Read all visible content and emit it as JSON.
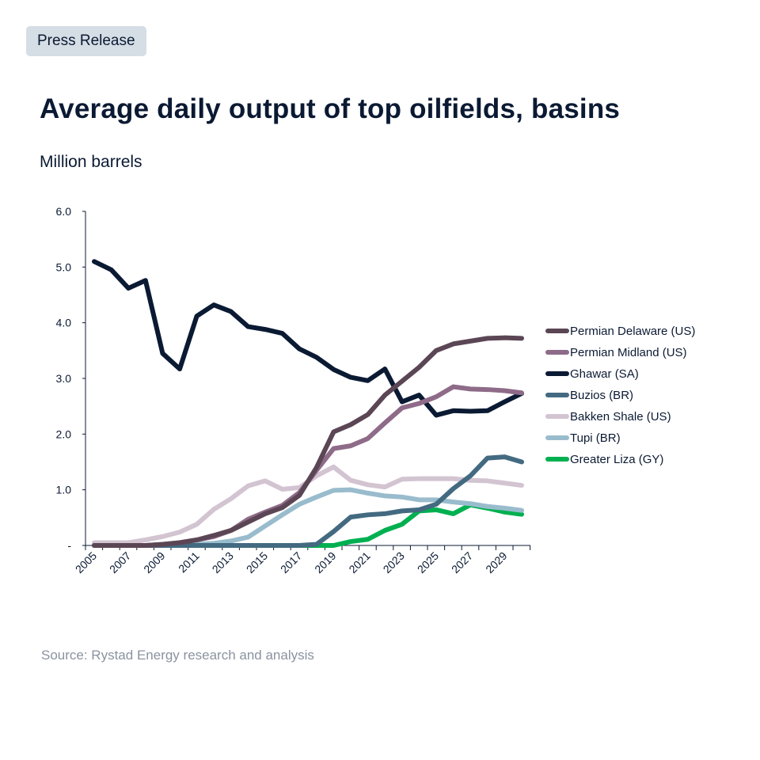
{
  "badge": "Press Release",
  "title": "Average daily output of top oilfields, basins",
  "subtitle": "Million barrels",
  "source": "Source: Rystad Energy research and analysis",
  "chart_data": {
    "type": "line",
    "title": "Average daily output of top oilfields, basins",
    "ylabel": "Million barrels",
    "ylim": [
      0,
      6
    ],
    "yticks": [
      "-",
      "1.0",
      "2.0",
      "3.0",
      "4.0",
      "5.0",
      "6.0"
    ],
    "xticks": [
      "2005",
      "2007",
      "2009",
      "2011",
      "2013",
      "2015",
      "2017",
      "2019",
      "2021",
      "2023",
      "2025",
      "2027",
      "2029"
    ],
    "x": [
      2005,
      2006,
      2007,
      2008,
      2009,
      2010,
      2011,
      2012,
      2013,
      2014,
      2015,
      2016,
      2017,
      2018,
      2019,
      2020,
      2021,
      2022,
      2023,
      2024,
      2025,
      2026,
      2027,
      2028,
      2029,
      2030
    ],
    "legend_position": "right",
    "grid": false,
    "series": [
      {
        "name": "Permian Delaware (US)",
        "color": "#5b4655",
        "values": [
          0,
          0,
          0,
          0,
          0.02,
          0.05,
          0.1,
          0.18,
          0.27,
          0.42,
          0.57,
          0.68,
          0.9,
          1.4,
          2.04,
          2.17,
          2.35,
          2.7,
          2.95,
          3.2,
          3.5,
          3.62,
          3.67,
          3.72,
          3.73,
          3.72
        ]
      },
      {
        "name": "Permian Midland (US)",
        "color": "#8e6b88",
        "values": [
          0,
          0,
          0,
          0,
          0.02,
          0.05,
          0.1,
          0.16,
          0.27,
          0.47,
          0.6,
          0.72,
          0.95,
          1.35,
          1.74,
          1.79,
          1.92,
          2.2,
          2.47,
          2.55,
          2.67,
          2.85,
          2.81,
          2.8,
          2.78,
          2.74
        ]
      },
      {
        "name": "Ghawar (SA)",
        "color": "#0b1a33",
        "values": [
          5.1,
          4.95,
          4.62,
          4.76,
          3.45,
          3.17,
          4.12,
          4.32,
          4.2,
          3.93,
          3.88,
          3.81,
          3.53,
          3.38,
          3.16,
          3.02,
          2.96,
          3.17,
          2.58,
          2.7,
          2.34,
          2.42,
          2.41,
          2.42,
          2.58,
          2.73
        ]
      },
      {
        "name": "Buzios (BR)",
        "color": "#436a80",
        "values": [
          0,
          0,
          0,
          0,
          0,
          0,
          0,
          0,
          0,
          0,
          0,
          0,
          0,
          0.02,
          0.25,
          0.51,
          0.55,
          0.57,
          0.62,
          0.64,
          0.74,
          1.02,
          1.25,
          1.57,
          1.59,
          1.5
        ]
      },
      {
        "name": "Bakken Shale (US)",
        "color": "#d3c4d1",
        "values": [
          0.05,
          0.05,
          0.05,
          0.1,
          0.16,
          0.24,
          0.38,
          0.65,
          0.84,
          1.07,
          1.16,
          1.01,
          1.04,
          1.25,
          1.41,
          1.17,
          1.09,
          1.05,
          1.19,
          1.2,
          1.2,
          1.2,
          1.17,
          1.16,
          1.12,
          1.08
        ]
      },
      {
        "name": "Tupi (BR)",
        "color": "#99bccd",
        "values": [
          0,
          0,
          0,
          0,
          0,
          0,
          0.02,
          0.04,
          0.08,
          0.15,
          0.35,
          0.55,
          0.74,
          0.87,
          0.99,
          1.0,
          0.94,
          0.89,
          0.87,
          0.82,
          0.82,
          0.78,
          0.75,
          0.7,
          0.67,
          0.63
        ]
      },
      {
        "name": "Greater Liza (GY)",
        "color": "#00b050",
        "values": [
          0,
          0,
          0,
          0,
          0,
          0,
          0,
          0,
          0,
          0,
          0,
          0,
          0,
          0,
          0,
          0.07,
          0.11,
          0.27,
          0.38,
          0.62,
          0.64,
          0.57,
          0.73,
          0.67,
          0.6,
          0.56
        ]
      }
    ]
  }
}
